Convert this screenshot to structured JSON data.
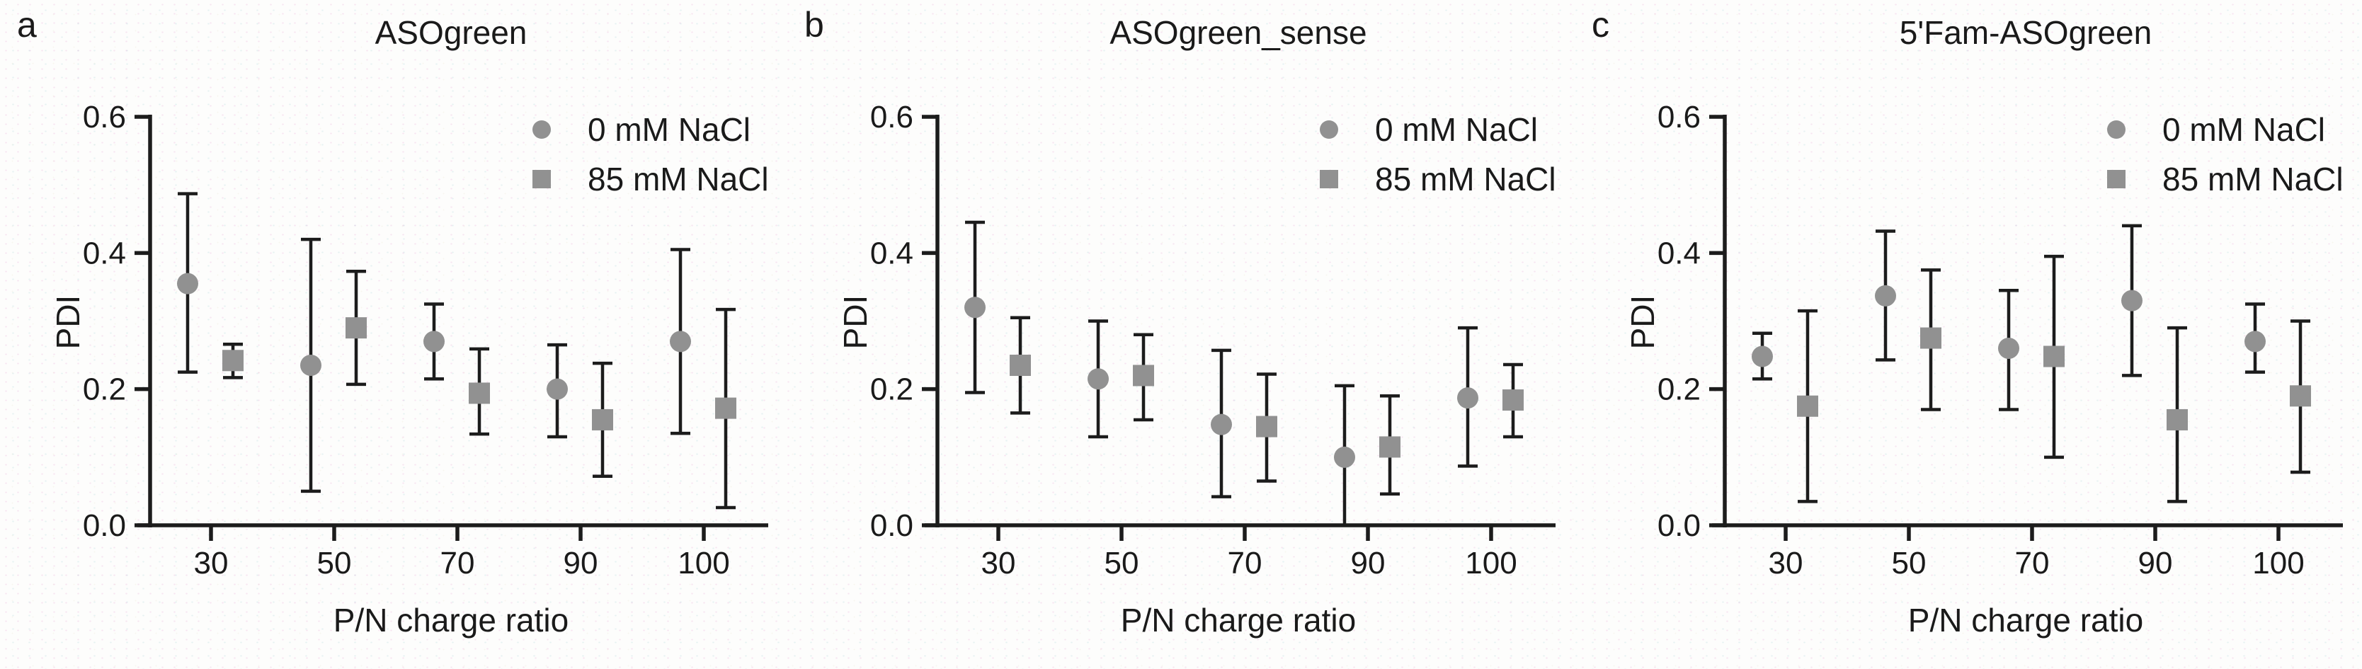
{
  "figure": {
    "background": "#fdfdfc",
    "marker_color": "#919191",
    "axis_color": "#1c1c1c",
    "text_color": "#1a1a1a"
  },
  "chart_data": [
    {
      "type": "scatter",
      "panel_label": "a",
      "title": "ASOgreen",
      "xlabel": "P/N charge ratio",
      "ylabel": "PDI",
      "ylim": [
        0,
        0.6
      ],
      "ytick_labels": [
        "0.0",
        "0.2",
        "0.4",
        "0.6"
      ],
      "ytick_values": [
        0.0,
        0.2,
        0.4,
        0.6
      ],
      "categories": [
        "30",
        "50",
        "70",
        "90",
        "100"
      ],
      "grid": false,
      "legend_position": "top-right",
      "legend": [
        {
          "label": "0 mM NaCl",
          "marker": "circle"
        },
        {
          "label": "85 mM NaCl",
          "marker": "square"
        }
      ],
      "series": [
        {
          "name": "0 mM NaCl",
          "marker": "circle",
          "points": [
            {
              "y": 0.355,
              "lo": 0.225,
              "hi": 0.487
            },
            {
              "y": 0.235,
              "lo": 0.05,
              "hi": 0.42
            },
            {
              "y": 0.27,
              "lo": 0.215,
              "hi": 0.325
            },
            {
              "y": 0.2,
              "lo": 0.13,
              "hi": 0.265
            },
            {
              "y": 0.27,
              "lo": 0.135,
              "hi": 0.405
            }
          ]
        },
        {
          "name": "85 mM NaCl",
          "marker": "square",
          "points": [
            {
              "y": 0.242,
              "lo": 0.217,
              "hi": 0.266
            },
            {
              "y": 0.29,
              "lo": 0.207,
              "hi": 0.373
            },
            {
              "y": 0.194,
              "lo": 0.134,
              "hi": 0.259
            },
            {
              "y": 0.155,
              "lo": 0.072,
              "hi": 0.238
            },
            {
              "y": 0.172,
              "lo": 0.026,
              "hi": 0.317
            }
          ]
        }
      ]
    },
    {
      "type": "scatter",
      "panel_label": "b",
      "title": "ASOgreen_sense",
      "xlabel": "P/N charge ratio",
      "ylabel": "PDI",
      "ylim": [
        0,
        0.6
      ],
      "ytick_labels": [
        "0.0",
        "0.2",
        "0.4",
        "0.6"
      ],
      "ytick_values": [
        0.0,
        0.2,
        0.4,
        0.6
      ],
      "categories": [
        "30",
        "50",
        "70",
        "90",
        "100"
      ],
      "grid": false,
      "legend_position": "top-right",
      "legend": [
        {
          "label": "0 mM NaCl",
          "marker": "circle"
        },
        {
          "label": "85 mM NaCl",
          "marker": "square"
        }
      ],
      "series": [
        {
          "name": "0 mM NaCl",
          "marker": "circle",
          "points": [
            {
              "y": 0.32,
              "lo": 0.195,
              "hi": 0.445
            },
            {
              "y": 0.215,
              "lo": 0.13,
              "hi": 0.3
            },
            {
              "y": 0.148,
              "lo": 0.042,
              "hi": 0.257
            },
            {
              "y": 0.1,
              "lo": 0.0,
              "hi": 0.205
            },
            {
              "y": 0.187,
              "lo": 0.087,
              "hi": 0.29
            }
          ]
        },
        {
          "name": "85 mM NaCl",
          "marker": "square",
          "points": [
            {
              "y": 0.235,
              "lo": 0.165,
              "hi": 0.305
            },
            {
              "y": 0.22,
              "lo": 0.155,
              "hi": 0.28
            },
            {
              "y": 0.145,
              "lo": 0.065,
              "hi": 0.222
            },
            {
              "y": 0.115,
              "lo": 0.046,
              "hi": 0.19
            },
            {
              "y": 0.184,
              "lo": 0.13,
              "hi": 0.236
            }
          ]
        }
      ]
    },
    {
      "type": "scatter",
      "panel_label": "c",
      "title": "5'Fam-ASOgreen",
      "xlabel": "P/N charge ratio",
      "ylabel": "PDI",
      "ylim": [
        0,
        0.6
      ],
      "ytick_labels": [
        "0.0",
        "0.2",
        "0.4",
        "0.6"
      ],
      "ytick_values": [
        0.0,
        0.2,
        0.4,
        0.6
      ],
      "categories": [
        "30",
        "50",
        "70",
        "90",
        "100"
      ],
      "grid": false,
      "legend_position": "top-right",
      "legend": [
        {
          "label": "0 mM NaCl",
          "marker": "circle"
        },
        {
          "label": "85 mM NaCl",
          "marker": "square"
        }
      ],
      "series": [
        {
          "name": "0 mM NaCl",
          "marker": "circle",
          "points": [
            {
              "y": 0.248,
              "lo": 0.215,
              "hi": 0.282
            },
            {
              "y": 0.337,
              "lo": 0.243,
              "hi": 0.432
            },
            {
              "y": 0.26,
              "lo": 0.17,
              "hi": 0.345
            },
            {
              "y": 0.33,
              "lo": 0.22,
              "hi": 0.44
            },
            {
              "y": 0.27,
              "lo": 0.225,
              "hi": 0.325
            }
          ]
        },
        {
          "name": "85 mM NaCl",
          "marker": "square",
          "points": [
            {
              "y": 0.175,
              "lo": 0.035,
              "hi": 0.315
            },
            {
              "y": 0.275,
              "lo": 0.17,
              "hi": 0.375
            },
            {
              "y": 0.248,
              "lo": 0.1,
              "hi": 0.395
            },
            {
              "y": 0.155,
              "lo": 0.035,
              "hi": 0.29
            },
            {
              "y": 0.19,
              "lo": 0.078,
              "hi": 0.3
            }
          ]
        }
      ]
    }
  ]
}
